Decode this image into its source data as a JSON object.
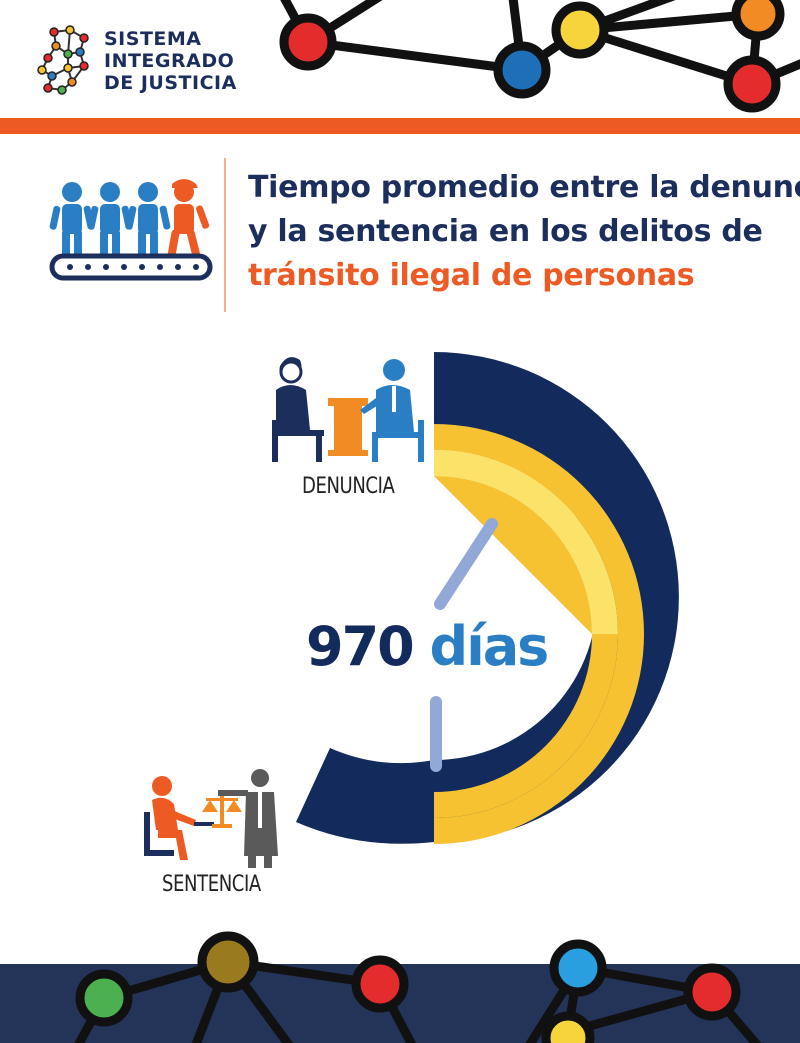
{
  "header": {
    "logo_lines": [
      "SISTEMA",
      "INTEGRADO",
      "DE JUSTICIA"
    ]
  },
  "title": {
    "line1": "Tiempo promedio entre la denuncia",
    "line2": "y la sentencia en los delitos de",
    "line3": "tránsito ilegal de personas"
  },
  "gauge": {
    "value": "970",
    "unit": "días",
    "start_label": "DENUNCIA",
    "end_label": "SENTENCIA"
  },
  "icons": {
    "logo": "network-map-icon",
    "people": "people-conveyor-icon",
    "denuncia": "complaint-desk-icon",
    "sentencia": "judge-scales-icon"
  },
  "colors": {
    "navy": "#122a5c",
    "orange": "#ee5a24",
    "yellow": "#f7c231",
    "light_yellow": "#fbe36a",
    "blue": "#2a7fc4",
    "red": "#e52c2c"
  }
}
